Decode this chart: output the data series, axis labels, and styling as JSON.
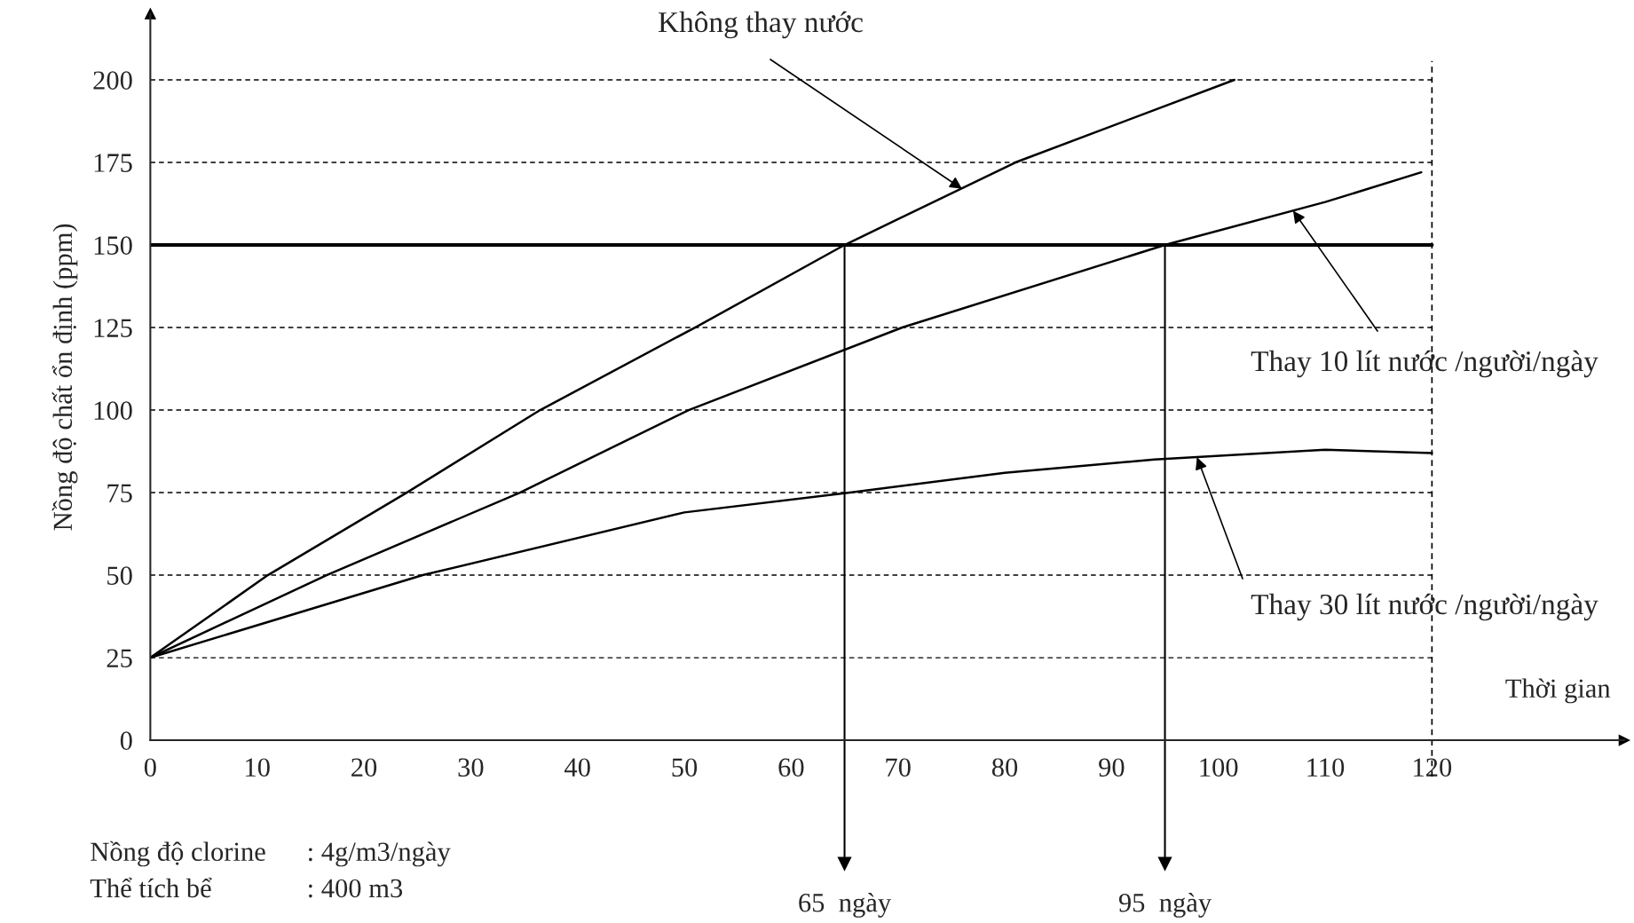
{
  "chart_data": {
    "type": "line",
    "xlabel": "Thời gian",
    "ylabel": "Nồng độ chất ổn định (ppm)",
    "xlim": [
      0,
      138
    ],
    "ylim": [
      0,
      220
    ],
    "xticks": [
      0,
      10,
      20,
      30,
      40,
      50,
      60,
      70,
      80,
      90,
      100,
      110,
      120
    ],
    "yticks": [
      0,
      25,
      50,
      75,
      100,
      125,
      150,
      175,
      200
    ],
    "grid": "y",
    "line_style": "solid",
    "marker": "none",
    "series": [
      {
        "color": "#000000",
        "x": [
          0,
          11,
          24,
          36.5,
          51,
          65,
          81,
          101.5
        ],
        "values": [
          25,
          50,
          75,
          100,
          125,
          150,
          175,
          200
        ]
      },
      {
        "color": "#000000",
        "x": [
          0,
          16.5,
          34.6,
          50.4,
          70.4,
          95,
          110,
          119
        ],
        "values": [
          25,
          50,
          75,
          100,
          125,
          150,
          163,
          172
        ]
      },
      {
        "color": "#000000",
        "x": [
          0,
          25.5,
          50,
          65.5,
          80,
          94,
          110,
          120
        ],
        "values": [
          25,
          50,
          69,
          75,
          81,
          85,
          88,
          87
        ]
      }
    ],
    "ref_lines": [
      {
        "axis": "y",
        "value": 150,
        "line_style": "solid",
        "color": "#000000"
      },
      {
        "axis": "x",
        "value": 65,
        "label": "65  ngày",
        "color": "#000000"
      },
      {
        "axis": "x",
        "value": 95,
        "label": "95  ngày",
        "color": "#000000"
      },
      {
        "axis": "x",
        "value": 120,
        "line_style": "dashed",
        "color": "#000000"
      }
    ],
    "annotations": [
      {
        "text": "Không thay nước",
        "x": 76,
        "y": 167
      },
      {
        "text": "Thay 10 lít nước /người/ngày",
        "x": 107,
        "y": 160.4
      },
      {
        "text": "Thay 30 lít nước /người/ngày",
        "x": 98,
        "y": 85.75
      },
      "Nồng độ clorine      : 4g/m3/ngày",
      "Thể tích bể              : 400 m3"
    ]
  }
}
